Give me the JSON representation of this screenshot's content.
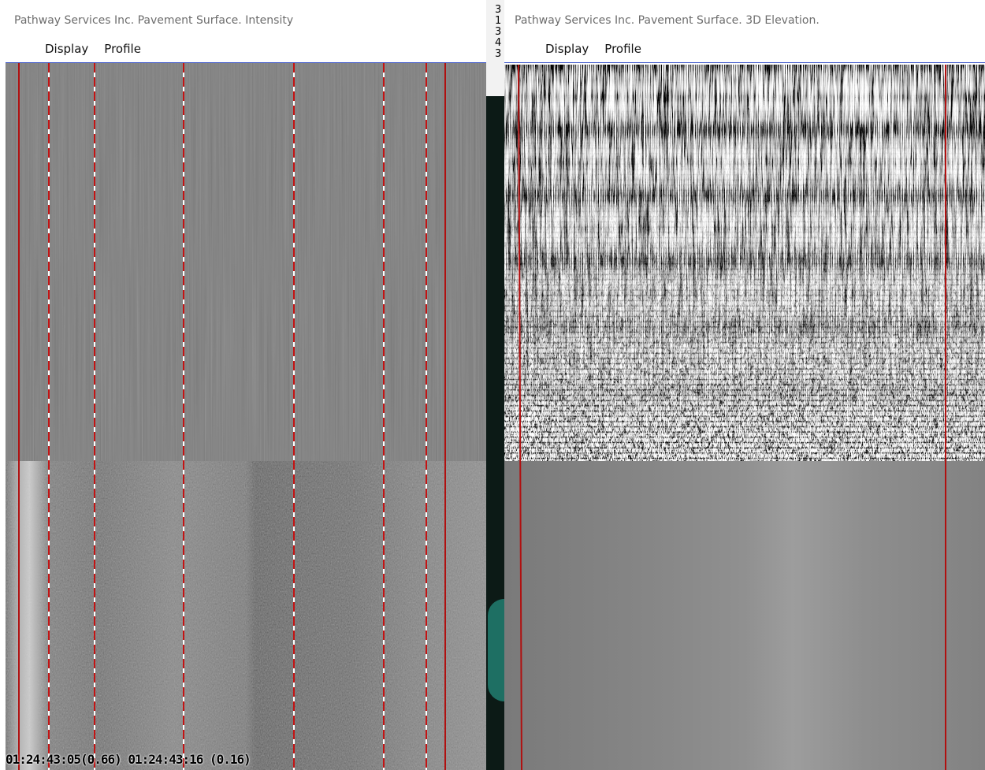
{
  "left_window": {
    "title": "Pathway Services Inc. Pavement Surface. Intensity",
    "menu": [
      "Display",
      "Profile"
    ],
    "status": "01:24:43:05(0.66) 01:24:43:16 (0.16)"
  },
  "right_window": {
    "title": "Pathway Services Inc. Pavement Surface. 3D Elevation.",
    "menu": [
      "Display",
      "Profile"
    ]
  },
  "side_digits": [
    "3",
    "1",
    "3",
    "4",
    "3"
  ]
}
